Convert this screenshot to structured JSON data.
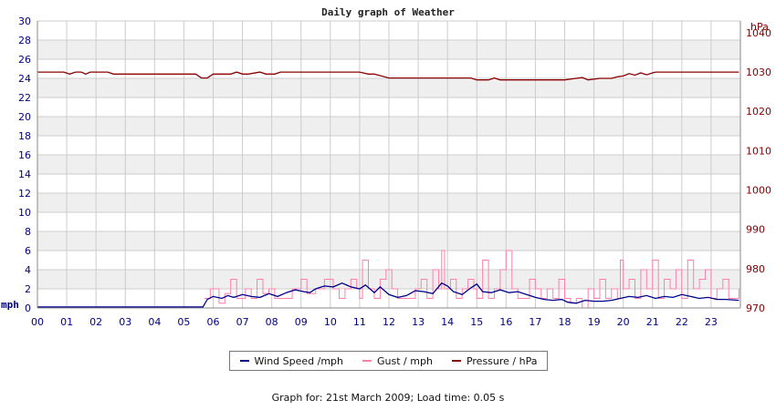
{
  "colors": {
    "wind": "#00008b",
    "gust": "#ff7fab",
    "pressure": "#8b0000",
    "band": "#efefef",
    "grid": "#cccccc"
  },
  "legend": {
    "wind": "Wind Speed /mph",
    "gust": "Gust / mph",
    "pressure": "Pressure / hPa"
  },
  "footer": "Graph for: 21st March 2009; Load time: 0.05 s",
  "chart_data": {
    "type": "line",
    "title": "Daily graph of Weather",
    "ylabel": "mph",
    "y2label": "hPa",
    "ylim": [
      0,
      30
    ],
    "y2lim": [
      970,
      1043
    ],
    "y_ticks": [
      "0",
      "2",
      "4",
      "6",
      "8",
      "10",
      "12",
      "14",
      "16",
      "18",
      "20",
      "22",
      "24",
      "26",
      "28",
      "30"
    ],
    "y2_ticks": [
      "970",
      "980",
      "990",
      "1000",
      "1010",
      "1020",
      "1030",
      "1040"
    ],
    "x_ticks": [
      "00",
      "01",
      "02",
      "03",
      "04",
      "05",
      "06",
      "07",
      "08",
      "09",
      "10",
      "11",
      "12",
      "13",
      "14",
      "15",
      "16",
      "17",
      "18",
      "19",
      "20",
      "21",
      "22",
      "23"
    ],
    "xlim": [
      0,
      24
    ],
    "grid": true,
    "legend_position": "bottom",
    "series": [
      {
        "name": "Pressure / hPa",
        "axis": "right",
        "x": [
          0,
          0.9,
          1.1,
          1.3,
          1.5,
          1.65,
          1.8,
          2.4,
          2.6,
          5.4,
          5.6,
          5.8,
          6,
          6.6,
          6.8,
          7,
          7.2,
          7.6,
          7.8,
          8.1,
          8.3,
          8.6,
          11,
          11.3,
          11.5,
          12,
          12.2,
          14.8,
          15,
          15.2,
          15.4,
          15.6,
          15.8,
          16,
          18,
          18.3,
          18.6,
          18.8,
          19.2,
          19.6,
          19.8,
          20,
          20.2,
          20.4,
          20.6,
          20.8,
          21,
          21.1,
          23.95
        ],
        "values": [
          1030,
          1030,
          1029.5,
          1030,
          1030,
          1029.5,
          1030,
          1030,
          1029.5,
          1029.5,
          1028.5,
          1028.5,
          1029.5,
          1029.5,
          1030,
          1029.5,
          1029.5,
          1030,
          1029.5,
          1029.5,
          1030,
          1030,
          1030,
          1029.5,
          1029.5,
          1028.5,
          1028.5,
          1028.5,
          1028,
          1028,
          1028,
          1028.5,
          1028,
          1028,
          1028,
          1028.3,
          1028.6,
          1028,
          1028.4,
          1028.4,
          1028.8,
          1029,
          1029.6,
          1029.2,
          1029.8,
          1029.3,
          1029.8,
          1030,
          1030
        ]
      },
      {
        "name": "Wind Speed /mph",
        "axis": "left",
        "x": [
          0,
          5.65,
          5.8,
          6,
          6.3,
          6.5,
          6.7,
          7,
          7.3,
          7.6,
          7.9,
          8.2,
          8.5,
          8.8,
          9.1,
          9.3,
          9.5,
          9.8,
          10.1,
          10.4,
          10.7,
          11,
          11.2,
          11.5,
          11.7,
          12,
          12.3,
          12.6,
          12.9,
          13.2,
          13.5,
          13.8,
          14,
          14.2,
          14.5,
          14.8,
          15,
          15.2,
          15.5,
          15.8,
          16.1,
          16.4,
          16.7,
          17,
          17.3,
          17.6,
          17.9,
          18.1,
          18.4,
          18.7,
          19,
          19.3,
          19.6,
          19.9,
          20.2,
          20.5,
          20.8,
          21.1,
          21.4,
          21.7,
          22,
          22.3,
          22.6,
          22.9,
          23.2,
          23.5,
          23.95
        ],
        "values": [
          0.1,
          0.1,
          0.9,
          1.2,
          1,
          1.3,
          1.1,
          1.4,
          1.2,
          1.1,
          1.5,
          1.2,
          1.6,
          1.9,
          1.7,
          1.6,
          2,
          2.3,
          2.2,
          2.6,
          2.2,
          2,
          2.4,
          1.6,
          2.2,
          1.4,
          1.1,
          1.3,
          1.8,
          1.7,
          1.5,
          2.6,
          2.3,
          1.7,
          1.4,
          2.1,
          2.5,
          1.7,
          1.6,
          1.9,
          1.6,
          1.7,
          1.4,
          1.1,
          0.9,
          0.8,
          0.9,
          0.6,
          0.5,
          0.8,
          0.7,
          0.7,
          0.8,
          1,
          1.2,
          1.1,
          1.3,
          1,
          1.2,
          1.1,
          1.4,
          1.2,
          1,
          1.1,
          0.9,
          0.9,
          0.8
        ]
      },
      {
        "name": "Gust / mph",
        "axis": "left",
        "x": [
          5.7,
          5.9,
          6.2,
          6.4,
          6.6,
          6.8,
          7.1,
          7.3,
          7.5,
          7.7,
          7.9,
          8.1,
          8.4,
          8.7,
          9,
          9.2,
          9.5,
          9.8,
          10.1,
          10.3,
          10.5,
          10.7,
          10.9,
          11,
          11.1,
          11.3,
          11.5,
          11.7,
          11.9,
          12.1,
          12.3,
          12.6,
          12.9,
          13.1,
          13.3,
          13.5,
          13.7,
          13.8,
          13.9,
          14.1,
          14.3,
          14.5,
          14.7,
          14.9,
          15,
          15.2,
          15.4,
          15.6,
          15.8,
          16,
          16.2,
          16.4,
          16.6,
          16.8,
          17,
          17.2,
          17.4,
          17.6,
          17.8,
          18,
          18.2,
          18.4,
          18.6,
          18.8,
          19,
          19.2,
          19.4,
          19.6,
          19.8,
          19.9,
          20,
          20.2,
          20.4,
          20.6,
          20.8,
          21,
          21.2,
          21.4,
          21.6,
          21.8,
          22,
          22.2,
          22.4,
          22.6,
          22.8,
          23,
          23.2,
          23.4,
          23.6,
          23.95
        ],
        "values": [
          1,
          2,
          0.5,
          1.5,
          3,
          1,
          2,
          1,
          3,
          1.5,
          2,
          1,
          1,
          2,
          3,
          1.5,
          2,
          3,
          2,
          1,
          2,
          3,
          2,
          1,
          5,
          2,
          1,
          3,
          4,
          2,
          1,
          1,
          2,
          3,
          1,
          4,
          2,
          6,
          2,
          3,
          1,
          2,
          3,
          2,
          1,
          5,
          1,
          2,
          4,
          6,
          2,
          1,
          1,
          3,
          2,
          1,
          2,
          1,
          3,
          1,
          0.5,
          1,
          0,
          2,
          1,
          3,
          1,
          2,
          1,
          5,
          2,
          3,
          1,
          4,
          2,
          5,
          1,
          3,
          2,
          4,
          1,
          5,
          2,
          3,
          4,
          1,
          2,
          3,
          1,
          2
        ]
      }
    ]
  }
}
